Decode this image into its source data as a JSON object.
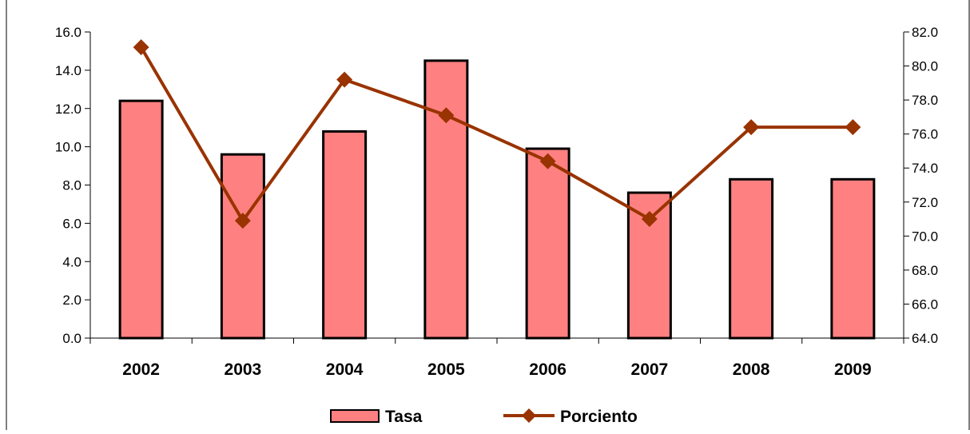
{
  "chart_data": {
    "type": "bar",
    "title": "",
    "xlabel": "",
    "categories": [
      "2002",
      "2003",
      "2004",
      "2005",
      "2006",
      "2007",
      "2008",
      "2009"
    ],
    "series": [
      {
        "name": "Tasa",
        "type": "bar",
        "axis": "left",
        "values": [
          12.4,
          9.6,
          10.8,
          14.5,
          9.9,
          7.6,
          8.3,
          8.3
        ]
      },
      {
        "name": "Porciento",
        "type": "line",
        "axis": "right",
        "marker": "diamond",
        "values": [
          81.1,
          70.9,
          79.2,
          77.1,
          74.4,
          71.0,
          76.4,
          76.4
        ]
      }
    ],
    "y_left": {
      "label": "",
      "ylim": [
        0,
        16
      ],
      "ticks": [
        "0.0",
        "2.0",
        "4.0",
        "6.0",
        "8.0",
        "10.0",
        "12.0",
        "14.0",
        "16.0"
      ]
    },
    "y_right": {
      "label": "",
      "ylim": [
        64,
        82
      ],
      "ticks": [
        "64.0",
        "66.0",
        "68.0",
        "70.0",
        "72.0",
        "74.0",
        "76.0",
        "78.0",
        "80.0",
        "82.0"
      ]
    },
    "grid": false,
    "legend": {
      "position": "bottom",
      "entries": [
        "Tasa",
        "Porciento"
      ]
    },
    "colors": {
      "bar_fill": "#ff8080",
      "bar_stroke": "#000000",
      "line": "#993300",
      "marker": "#993300"
    }
  }
}
